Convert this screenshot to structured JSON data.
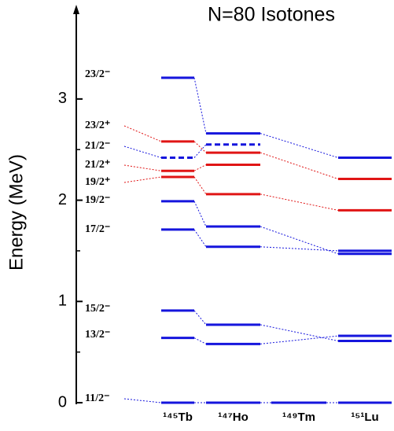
{
  "chart_data": {
    "type": "level-scheme",
    "title": "N=80 Isotones",
    "y_label": "Energy (MeV)",
    "categories": [
      "¹⁴⁵Tb",
      "¹⁴⁷Ho",
      "¹⁴⁹Tm",
      "¹⁵¹Lu"
    ],
    "ylim": [
      0,
      3.9
    ],
    "yticks": [
      0,
      1,
      2,
      3
    ],
    "series": [
      {
        "name": "11/2⁻",
        "color": "#1515dd",
        "values": [
          0,
          0,
          0,
          0
        ]
      },
      {
        "name": "13/2⁻",
        "color": "#1515dd",
        "values": [
          0.64,
          0.58,
          null,
          0.66
        ]
      },
      {
        "name": "15/2⁻",
        "color": "#1515dd",
        "values": [
          0.91,
          0.77,
          null,
          0.61
        ]
      },
      {
        "name": "17/2⁻",
        "color": "#1515dd",
        "values": [
          1.71,
          1.54,
          null,
          1.5
        ]
      },
      {
        "name": "19/2⁻",
        "color": "#1515dd",
        "values": [
          1.99,
          1.74,
          null,
          1.47
        ]
      },
      {
        "name": "19/2⁺",
        "color": "#e01515",
        "values": [
          2.23,
          2.06,
          null,
          1.9
        ]
      },
      {
        "name": "21/2⁺",
        "color": "#e01515",
        "values": [
          2.29,
          2.35,
          null,
          null
        ]
      },
      {
        "name": "21/2⁻",
        "color": "#1515dd",
        "style": "dashed",
        "values": [
          2.42,
          2.55,
          null,
          null
        ]
      },
      {
        "name": "23/2⁺",
        "color": "#e01515",
        "values": [
          2.58,
          2.47,
          null,
          2.21
        ]
      },
      {
        "name": "23/2⁻",
        "color": "#1515dd",
        "values": [
          3.21,
          2.66,
          null,
          2.42
        ]
      }
    ]
  }
}
